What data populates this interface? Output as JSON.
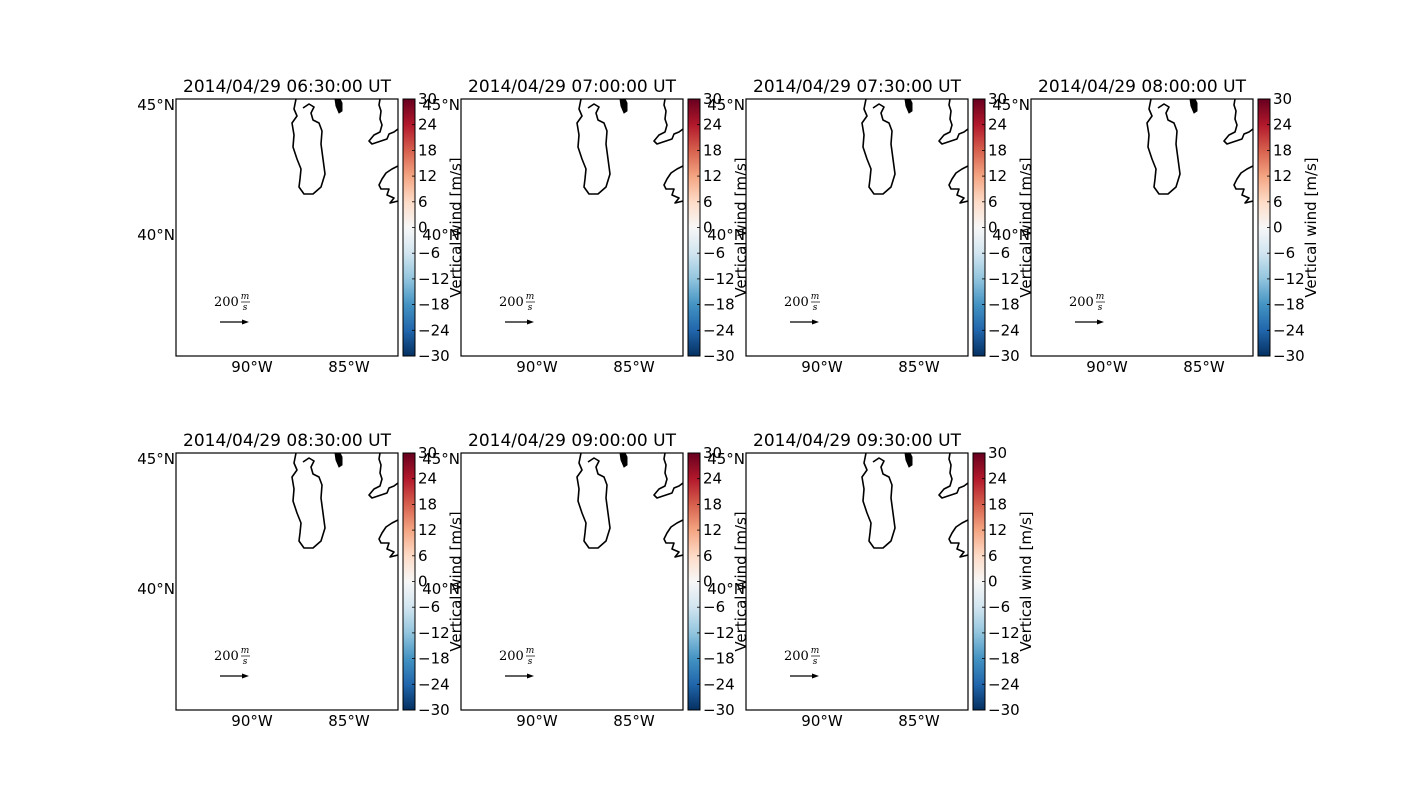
{
  "figure": {
    "panels": [
      {
        "title": "2014/04/29 06:30:00 UT"
      },
      {
        "title": "2014/04/29 07:00:00 UT"
      },
      {
        "title": "2014/04/29 07:30:00 UT"
      },
      {
        "title": "2014/04/29 08:00:00 UT"
      },
      {
        "title": "2014/04/29 08:30:00 UT"
      },
      {
        "title": "2014/04/29 09:00:00 UT"
      },
      {
        "title": "2014/04/29 09:30:00 UT"
      }
    ],
    "lat_labels": [
      "45°N",
      "40°N"
    ],
    "lon_labels": [
      "90°W",
      "85°W"
    ],
    "colorbar": {
      "label": "Vertical wind [m/s]",
      "ticks": [
        "30",
        "24",
        "18",
        "12",
        "6",
        "0",
        "−6",
        "−12",
        "−18",
        "−24",
        "−30"
      ],
      "range": [
        -30,
        30
      ],
      "colormap": "RdBu_r",
      "colors": [
        "#053061",
        "#2166ac",
        "#4393c3",
        "#92c5de",
        "#d1e5f0",
        "#f7f7f7",
        "#fddbc7",
        "#f4a582",
        "#d6604d",
        "#b2182b",
        "#67001f"
      ]
    },
    "reference_arrow": {
      "value": "200",
      "unit_num": "m",
      "unit_den": "s"
    },
    "map": {
      "coastline_color": "#000000",
      "features": [
        "Lake Michigan",
        "Lake Huron shoreline"
      ]
    }
  }
}
